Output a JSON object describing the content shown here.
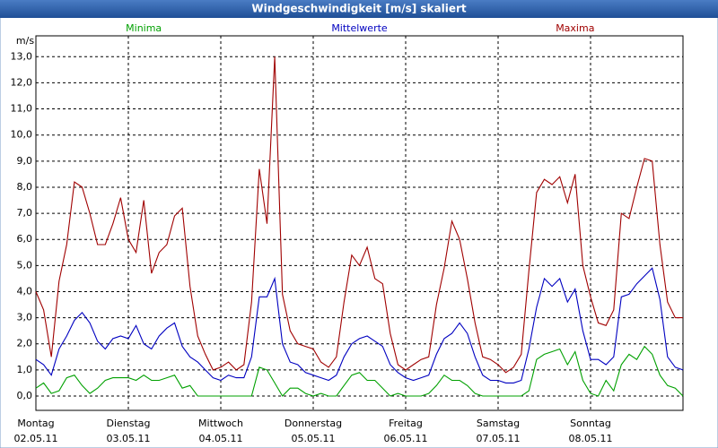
{
  "chart_data": {
    "type": "line",
    "title": "Windgeschwindigkeit [m/s] skaliert",
    "y_label": "m/s",
    "xlim": [
      0,
      168
    ],
    "ylim": [
      -0.55,
      13.8
    ],
    "grid": true,
    "yticks": [
      {
        "value": 0,
        "label": "0,0"
      },
      {
        "value": 1,
        "label": "1,0"
      },
      {
        "value": 2,
        "label": "2,0"
      },
      {
        "value": 3,
        "label": "3,0"
      },
      {
        "value": 4,
        "label": "4,0"
      },
      {
        "value": 5,
        "label": "5,0"
      },
      {
        "value": 6,
        "label": "6,0"
      },
      {
        "value": 7,
        "label": "7,0"
      },
      {
        "value": 8,
        "label": "8,0"
      },
      {
        "value": 9,
        "label": "9,0"
      },
      {
        "value": 10,
        "label": "10,0"
      },
      {
        "value": 11,
        "label": "11,0"
      },
      {
        "value": 12,
        "label": "12,0"
      },
      {
        "value": 13,
        "label": "13,0"
      }
    ],
    "xticks": [
      {
        "value": 0,
        "label": "Montag",
        "sublabel": "02.05.11"
      },
      {
        "value": 24,
        "label": "Dienstag",
        "sublabel": "03.05.11"
      },
      {
        "value": 48,
        "label": "Mittwoch",
        "sublabel": "04.05.11"
      },
      {
        "value": 72,
        "label": "Donnerstag",
        "sublabel": "05.05.11"
      },
      {
        "value": 96,
        "label": "Freitag",
        "sublabel": "06.05.11"
      },
      {
        "value": 120,
        "label": "Samstag",
        "sublabel": "07.05.11"
      },
      {
        "value": 144,
        "label": "Sonntag",
        "sublabel": "08.05.11"
      }
    ],
    "x": [
      0,
      2,
      4,
      6,
      8,
      10,
      12,
      14,
      16,
      18,
      20,
      22,
      24,
      26,
      28,
      30,
      32,
      34,
      36,
      38,
      40,
      42,
      44,
      46,
      48,
      50,
      52,
      54,
      56,
      58,
      60,
      62,
      64,
      66,
      68,
      70,
      72,
      74,
      76,
      78,
      80,
      82,
      84,
      86,
      88,
      90,
      92,
      94,
      96,
      98,
      100,
      102,
      104,
      106,
      108,
      110,
      112,
      114,
      116,
      118,
      120,
      122,
      124,
      126,
      128,
      130,
      132,
      134,
      136,
      138,
      140,
      142,
      144,
      146,
      148,
      150,
      152,
      154,
      156,
      158,
      160,
      162,
      164,
      166,
      168
    ],
    "series": [
      {
        "name": "Minima",
        "color": "#00a000",
        "values": [
          0.3,
          0.5,
          0.1,
          0.2,
          0.7,
          0.8,
          0.4,
          0.1,
          0.3,
          0.6,
          0.7,
          0.7,
          0.7,
          0.6,
          0.8,
          0.6,
          0.6,
          0.7,
          0.8,
          0.3,
          0.4,
          0,
          0,
          0,
          0,
          0,
          0,
          0,
          0,
          1.1,
          1.0,
          0.5,
          0,
          0.3,
          0.3,
          0.1,
          0,
          0.1,
          0,
          0,
          0.4,
          0.8,
          0.9,
          0.6,
          0.6,
          0.3,
          0,
          0.1,
          0,
          0,
          0,
          0.1,
          0.4,
          0.8,
          0.6,
          0.6,
          0.4,
          0.1,
          0,
          0,
          0,
          0,
          0,
          0,
          0.2,
          1.4,
          1.6,
          1.7,
          1.8,
          1.2,
          1.7,
          0.6,
          0.1,
          0,
          0.6,
          0.2,
          1.2,
          1.6,
          1.4,
          1.9,
          1.6,
          0.8,
          0.4,
          0.3,
          0
        ]
      },
      {
        "name": "Mittelwerte",
        "color": "#0000c0",
        "values": [
          1.4,
          1.2,
          0.8,
          1.8,
          2.3,
          2.9,
          3.2,
          2.8,
          2.1,
          1.8,
          2.2,
          2.3,
          2.2,
          2.7,
          2.0,
          1.8,
          2.3,
          2.6,
          2.8,
          1.9,
          1.5,
          1.3,
          1.0,
          0.7,
          0.6,
          0.8,
          0.7,
          0.7,
          1.5,
          3.8,
          3.8,
          4.5,
          2.0,
          1.3,
          1.2,
          0.9,
          0.8,
          0.7,
          0.6,
          0.8,
          1.5,
          2.0,
          2.2,
          2.3,
          2.1,
          1.9,
          1.2,
          0.9,
          0.7,
          0.6,
          0.7,
          0.8,
          1.6,
          2.2,
          2.4,
          2.8,
          2.4,
          1.5,
          0.8,
          0.6,
          0.6,
          0.5,
          0.5,
          0.6,
          1.8,
          3.4,
          4.5,
          4.2,
          4.5,
          3.6,
          4.1,
          2.5,
          1.4,
          1.4,
          1.2,
          1.5,
          3.8,
          3.9,
          4.3,
          4.6,
          4.9,
          3.7,
          1.5,
          1.1,
          1.0
        ]
      },
      {
        "name": "Maxima",
        "color": "#a00000",
        "values": [
          4.0,
          3.3,
          1.5,
          4.4,
          5.8,
          8.2,
          8.0,
          7.0,
          5.8,
          5.8,
          6.6,
          7.6,
          6.0,
          5.5,
          7.5,
          4.7,
          5.5,
          5.8,
          6.9,
          7.2,
          4.2,
          2.3,
          1.6,
          1.0,
          1.1,
          1.3,
          1.0,
          1.2,
          3.6,
          8.7,
          6.6,
          13.0,
          3.9,
          2.5,
          2.0,
          1.9,
          1.8,
          1.3,
          1.1,
          1.5,
          3.6,
          5.4,
          5.0,
          5.7,
          4.5,
          4.3,
          2.4,
          1.2,
          1.0,
          1.2,
          1.4,
          1.5,
          3.5,
          4.9,
          6.7,
          6.0,
          4.5,
          2.8,
          1.5,
          1.4,
          1.2,
          0.9,
          1.1,
          1.6,
          4.8,
          7.8,
          8.3,
          8.1,
          8.4,
          7.4,
          8.5,
          5.0,
          3.8,
          2.8,
          2.7,
          3.3,
          7.0,
          6.8,
          8.0,
          9.1,
          9.0,
          5.8,
          3.6,
          3.0,
          3.0
        ]
      }
    ]
  }
}
